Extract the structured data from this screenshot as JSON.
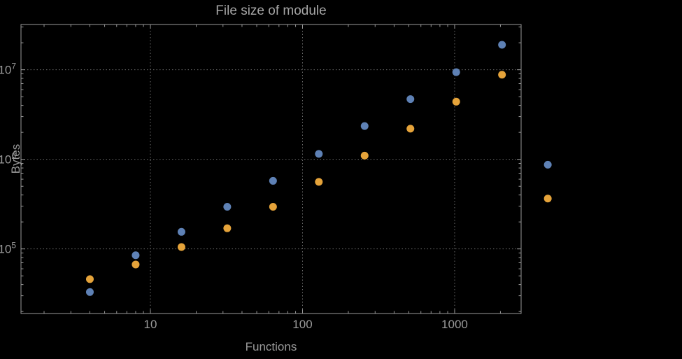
{
  "chart_data": {
    "type": "scatter",
    "title": "File size of module",
    "xlabel": "Functions",
    "ylabel": "Bytes",
    "x_scale": "log",
    "y_scale": "log",
    "xlim": [
      1.41,
      2735
    ],
    "ylim": [
      19000,
      32000000
    ],
    "x_ticks": [
      10,
      100,
      1000
    ],
    "x_tick_labels": [
      "10",
      "100",
      "1000"
    ],
    "y_ticks": [
      100000,
      1000000,
      10000000
    ],
    "y_tick_exponents": [
      5,
      6,
      7
    ],
    "grid": true,
    "legend_position": "none",
    "colors": {
      "background": "#000000",
      "frame": "#9a9a9a",
      "grid": "#6b6b6b",
      "text": "#9a9a9a",
      "point_blue": "#5E81B5",
      "point_orange": "#E5A33A"
    },
    "series": [
      {
        "name": "series-blue",
        "color_key": "point_blue",
        "x": [
          4,
          8,
          16,
          32,
          64,
          128,
          256,
          512,
          1024,
          2048,
          4096
        ],
        "y": [
          33000,
          85000,
          155000,
          295000,
          575000,
          1150000,
          2350000,
          4700000,
          9400000,
          19000000,
          870000
        ]
      },
      {
        "name": "series-orange",
        "color_key": "point_orange",
        "x": [
          4,
          8,
          16,
          32,
          64,
          128,
          256,
          512,
          1024,
          2048,
          4096
        ],
        "y": [
          46000,
          67000,
          105000,
          170000,
          295000,
          560000,
          1100000,
          2200000,
          4400000,
          8800000,
          365000
        ]
      }
    ]
  }
}
